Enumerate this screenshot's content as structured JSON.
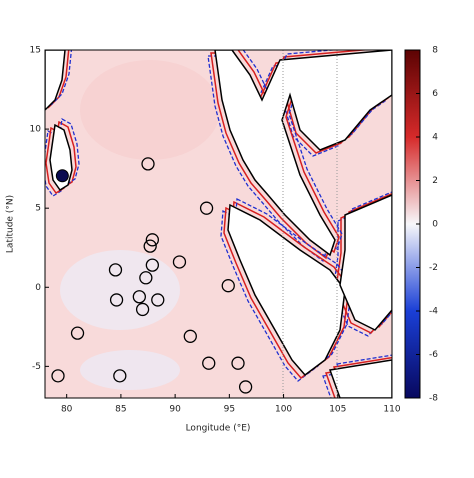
{
  "chart_data": {
    "type": "map",
    "xlabel": "Longitude (°E)",
    "ylabel": "Latitude (°N)",
    "xlim": [
      78,
      110
    ],
    "ylim": [
      -7,
      15
    ],
    "xticks": [
      80,
      85,
      90,
      95,
      100,
      105,
      110
    ],
    "yticks": [
      -5,
      0,
      5,
      10,
      15
    ],
    "colorbar": {
      "lim": [
        -8,
        8
      ],
      "ticks": [
        -8,
        -6,
        -4,
        -2,
        0,
        2,
        4,
        6,
        8
      ],
      "colors": [
        "#08085e",
        "#1a3fd6",
        "#f7f7fa",
        "#d62a2a",
        "#5c0303"
      ]
    },
    "points": {
      "x": [
        87.5,
        92.9,
        87.9,
        87.7,
        84.5,
        87.9,
        90.4,
        87.3,
        94.9,
        84.6,
        86.7,
        88.4,
        87.0,
        81.0,
        91.4,
        93.1,
        95.8,
        79.2,
        84.9,
        96.5
      ],
      "y": [
        7.8,
        5.0,
        3.0,
        2.6,
        1.1,
        1.4,
        1.6,
        0.6,
        0.1,
        -0.8,
        -0.6,
        -0.8,
        -1.4,
        -2.9,
        -3.1,
        -4.8,
        -4.8,
        -5.6,
        -5.6,
        -6.3
      ]
    },
    "highlight": {
      "x": 79.6,
      "y": 7.05,
      "color": "#0a0a50"
    }
  }
}
